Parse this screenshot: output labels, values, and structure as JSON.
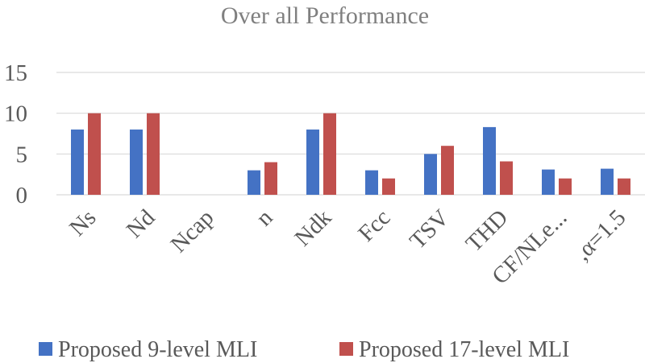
{
  "chart_data": {
    "type": "bar",
    "title": "Over all Performance",
    "categories": [
      "Ns",
      "Nd",
      "Ncap",
      "n",
      "Ndk",
      "Fcc",
      "TSV",
      "THD",
      "CF/NLe...",
      ",α=1.5"
    ],
    "series": [
      {
        "name": "Proposed 9-level MLI",
        "color": "#4472c4",
        "values": [
          8,
          8,
          0,
          3,
          8,
          3,
          5,
          8.3,
          3.1,
          3.2
        ]
      },
      {
        "name": "Proposed 17-level MLI",
        "color": "#c0504d",
        "values": [
          10,
          10,
          0,
          4,
          10,
          2,
          6,
          4.1,
          2,
          2
        ]
      }
    ],
    "yticks": [
      "0",
      "5",
      "10",
      "15"
    ],
    "ylim": [
      0,
      15
    ],
    "xlabel": "",
    "ylabel": "",
    "grid": true,
    "legend": "bottom"
  }
}
